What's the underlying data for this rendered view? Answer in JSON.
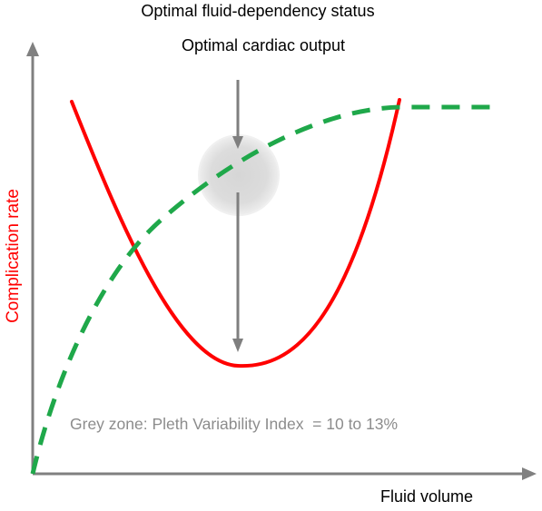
{
  "title_line1": "Optimal fluid-dependency status",
  "title_line2": "Optimal cardiac output",
  "x_axis_label": "Fluid volume",
  "y_axis_label": "Complication rate",
  "grey_zone_caption": "Grey zone: Pleth Variability Index  = 10 to 13%",
  "colors": {
    "axis": "#808080",
    "complication_curve": "#ff0000",
    "cardiac_output_curve": "#1fa84a",
    "grey_zone": "#d9d9d9",
    "arrow": "#7f7f7f",
    "caption": "#8c8c8c",
    "y_label": "#ff0000",
    "title_text": "#000000"
  }
}
